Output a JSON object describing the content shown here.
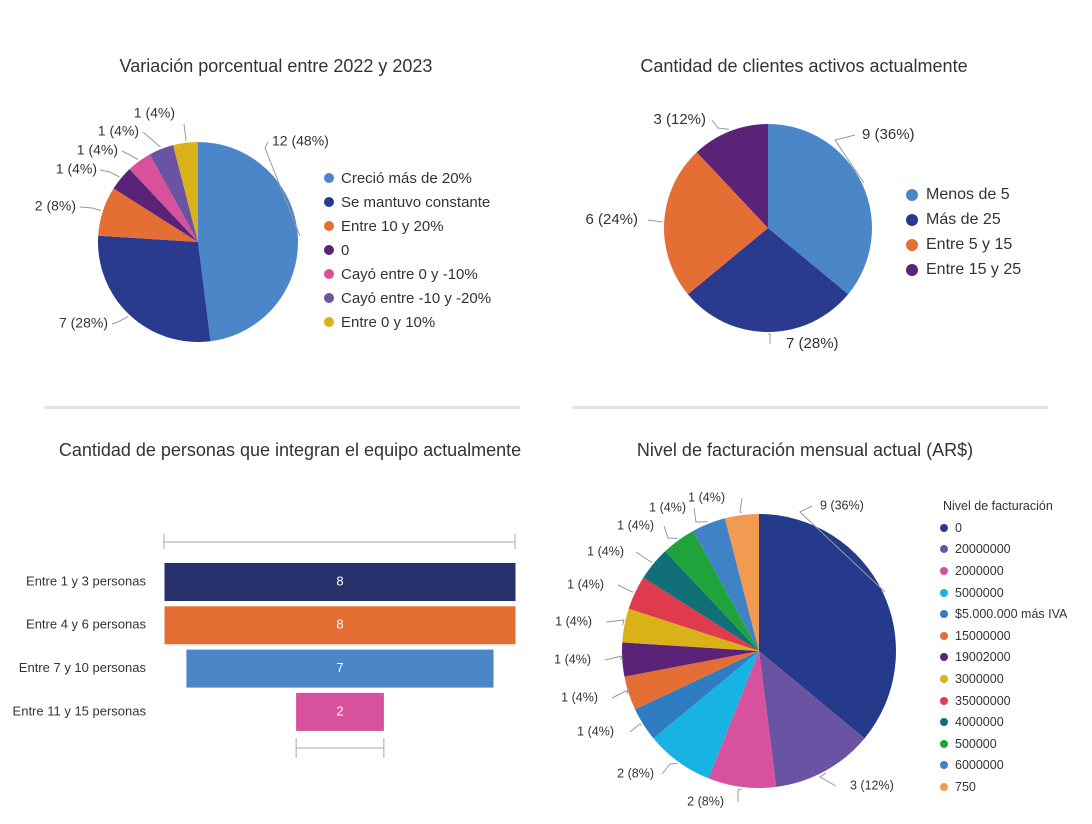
{
  "chart_data": [
    {
      "type": "pie",
      "title": "Variación porcentual entre 2022 y 2023",
      "slices": [
        {
          "label": "Creció más de 20%",
          "value": 12,
          "pct": 48,
          "text": "12 (48%)",
          "color": "#4A86C8"
        },
        {
          "label": "Se mantuvo constante",
          "value": 7,
          "pct": 28,
          "text": "7 (28%)",
          "color": "#2A3B8F"
        },
        {
          "label": "Entre 10 y 20%",
          "value": 2,
          "pct": 8,
          "text": "2 (8%)",
          "color": "#E56E34"
        },
        {
          "label": "0",
          "value": 1,
          "pct": 4,
          "text": "1 (4%)",
          "color": "#5A2378"
        },
        {
          "label": "Cayó entre 0 y -10%",
          "value": 1,
          "pct": 4,
          "text": "1 (4%)",
          "color": "#D8519D"
        },
        {
          "label": "Cayó entre -10 y -20%",
          "value": 1,
          "pct": 4,
          "text": "1 (4%)",
          "color": "#6A53A2"
        },
        {
          "label": "Entre 0 y 10%",
          "value": 1,
          "pct": 4,
          "text": "1 (4%)",
          "color": "#D9B21A"
        }
      ]
    },
    {
      "type": "pie",
      "title": "Cantidad de clientes activos actualmente",
      "slices": [
        {
          "label": "Menos de 5",
          "value": 9,
          "pct": 36,
          "text": "9 (36%)",
          "color": "#4A86C8"
        },
        {
          "label": "Más de 25",
          "value": 7,
          "pct": 28,
          "text": "7 (28%)",
          "color": "#2A3B8F"
        },
        {
          "label": "Entre 5 y 15",
          "value": 6,
          "pct": 24,
          "text": "6 (24%)",
          "color": "#E56E34"
        },
        {
          "label": "Entre 15 y 25",
          "value": 3,
          "pct": 12,
          "text": "3 (12%)",
          "color": "#5A2378"
        }
      ]
    },
    {
      "type": "bar",
      "subtype": "funnel",
      "title": "Cantidad de personas que integran el equipo actualmente",
      "categories": [
        "Entre 1 y 3 personas",
        "Entre 4 y 6 personas",
        "Entre 7 y 10 personas",
        "Entre 11 y 15 personas"
      ],
      "values": [
        8,
        8,
        7,
        2
      ],
      "value_labels": [
        "8",
        "8",
        "7",
        "2"
      ],
      "colors": [
        "#26306A",
        "#E56E34",
        "#4A86C8",
        "#D8519D"
      ],
      "xlim": [
        0,
        8
      ]
    },
    {
      "type": "pie",
      "title": "Nivel de facturación mensual actual (AR$)",
      "legend_title": "Nivel de facturación",
      "slices": [
        {
          "label": "0",
          "value": 9,
          "pct": 36,
          "text": "9 (36%)",
          "color": "#253A8B"
        },
        {
          "label": "20000000",
          "value": 3,
          "pct": 12,
          "text": "3 (12%)",
          "color": "#6A53A2"
        },
        {
          "label": "2000000",
          "value": 2,
          "pct": 8,
          "text": "2 (8%)",
          "color": "#D8519D"
        },
        {
          "label": "5000000",
          "value": 2,
          "pct": 8,
          "text": "2 (8%)",
          "color": "#17B4E3"
        },
        {
          "label": "$5.000.000 más IVA",
          "value": 1,
          "pct": 4,
          "text": "1 (4%)",
          "color": "#2E7CC2"
        },
        {
          "label": "15000000",
          "value": 1,
          "pct": 4,
          "text": "1 (4%)",
          "color": "#E56E34"
        },
        {
          "label": "19002000",
          "value": 1,
          "pct": 4,
          "text": "1 (4%)",
          "color": "#5A2378"
        },
        {
          "label": "3000000",
          "value": 1,
          "pct": 4,
          "text": "1 (4%)",
          "color": "#D9B21A"
        },
        {
          "label": "35000000",
          "value": 1,
          "pct": 4,
          "text": "1 (4%)",
          "color": "#E03A4E"
        },
        {
          "label": "4000000",
          "value": 1,
          "pct": 4,
          "text": "1 (4%)",
          "color": "#116F78"
        },
        {
          "label": "500000",
          "value": 1,
          "pct": 4,
          "text": "1 (4%)",
          "color": "#1FA33A"
        },
        {
          "label": "6000000",
          "value": 1,
          "pct": 4,
          "text": "1 (4%)",
          "color": "#3F83C6"
        },
        {
          "label": "750",
          "value": 1,
          "pct": 4,
          "text": "1 (4%)",
          "color": "#F29A52"
        }
      ]
    }
  ]
}
